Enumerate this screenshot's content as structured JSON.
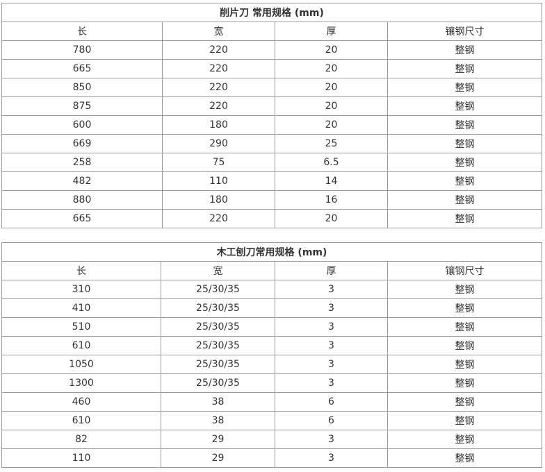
{
  "tables": [
    {
      "title": "削片刀 常用规格 (mm)",
      "headers": [
        "长",
        "宽",
        "厚",
        "镶钢尺寸"
      ],
      "rows": [
        [
          "780",
          "220",
          "20",
          "整钢"
        ],
        [
          "665",
          "220",
          "20",
          "整钢"
        ],
        [
          "850",
          "220",
          "20",
          "整钢"
        ],
        [
          "875",
          "220",
          "20",
          "整钢"
        ],
        [
          "600",
          "180",
          "20",
          "整钢"
        ],
        [
          "669",
          "290",
          "25",
          "整钢"
        ],
        [
          "258",
          "75",
          "6.5",
          "整钢"
        ],
        [
          "482",
          "110",
          "14",
          "整钢"
        ],
        [
          "880",
          "180",
          "16",
          "整钢"
        ],
        [
          "665",
          "220",
          "20",
          "整钢"
        ]
      ]
    },
    {
      "title": "木工刨刀常用规格 (mm)",
      "headers": [
        "长",
        "宽",
        "厚",
        "镶钢尺寸"
      ],
      "rows": [
        [
          "310",
          "25/30/35",
          "3",
          "整钢"
        ],
        [
          "410",
          "25/30/35",
          "3",
          "整钢"
        ],
        [
          "510",
          "25/30/35",
          "3",
          "整钢"
        ],
        [
          "610",
          "25/30/35",
          "3",
          "整钢"
        ],
        [
          "1050",
          "25/30/35",
          "3",
          "整钢"
        ],
        [
          "1300",
          "25/30/35",
          "3",
          "整钢"
        ],
        [
          "460",
          "38",
          "6",
          "整钢"
        ],
        [
          "610",
          "38",
          "6",
          "整钢"
        ],
        [
          "82",
          "29",
          "3",
          "整钢"
        ],
        [
          "110",
          "29",
          "3",
          "整钢"
        ]
      ]
    }
  ]
}
